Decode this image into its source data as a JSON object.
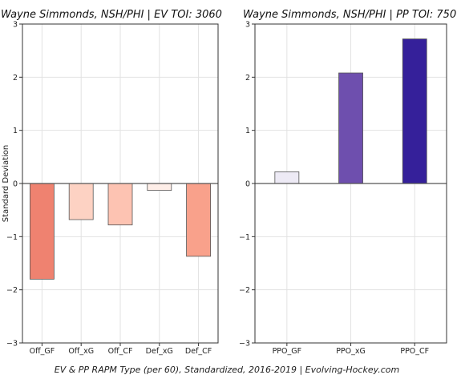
{
  "caption": "EV & PP RAPM Type (per 60), Standardized, 2016-2019   |   Evolving-Hockey.com",
  "chart_data": [
    {
      "type": "bar",
      "title": "Wayne Simmonds, NSH/PHI  |  EV TOI: 3060",
      "ylabel": "Standard Deviation",
      "ylim": [
        -3,
        3
      ],
      "yticks": [
        3,
        2,
        1,
        0,
        -1,
        -2,
        -3
      ],
      "grid": true,
      "categories": [
        "Off_GF",
        "Off_xG",
        "Off_CF",
        "Def_xG",
        "Def_CF"
      ],
      "values": [
        -1.8,
        -0.68,
        -0.78,
        -0.13,
        -1.37
      ],
      "colors": [
        "#ef8270",
        "#fdd2c3",
        "#fdc3b2",
        "#feeee8",
        "#f9a18b"
      ]
    },
    {
      "type": "bar",
      "title": "Wayne Simmonds, NSH/PHI  |  PP TOI: 750",
      "ylabel": "",
      "ylim": [
        -3,
        3
      ],
      "yticks": [
        3,
        2,
        1,
        0,
        -1,
        -2,
        -3
      ],
      "grid": true,
      "categories": [
        "PPO_GF",
        "PPO_xG",
        "PPO_CF"
      ],
      "values": [
        0.22,
        2.08,
        2.72
      ],
      "colors": [
        "#edeaf5",
        "#6e4fae",
        "#35209a"
      ]
    }
  ]
}
